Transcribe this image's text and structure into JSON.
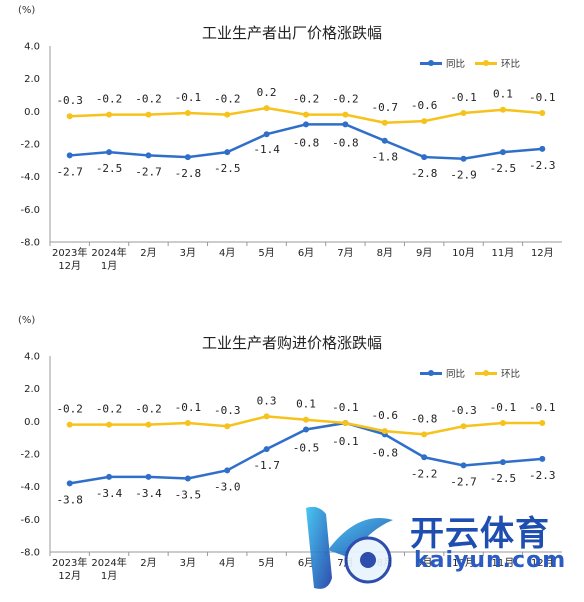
{
  "units_label": "(%)",
  "colors": {
    "yoy": "#2f6fc9",
    "mom": "#f6c21b",
    "axis": "#999999",
    "grid": "#cccccc"
  },
  "watermark": {
    "name_cn": "开云体育",
    "name_en": "kaiyun.com"
  },
  "chart_data": [
    {
      "type": "line",
      "title": "工业生产者出厂价格涨跌幅",
      "ylabel": "(%)",
      "ylim": [
        -8.0,
        4.0
      ],
      "yticks": [
        "4.0",
        "2.0",
        "0.0",
        "-2.0",
        "-4.0",
        "-6.0",
        "-8.0"
      ],
      "legend_position": "top-right",
      "categories": [
        [
          "2023年",
          "12月"
        ],
        [
          "2024年",
          "1月"
        ],
        [
          "2月"
        ],
        [
          "3月"
        ],
        [
          "4月"
        ],
        [
          "5月"
        ],
        [
          "6月"
        ],
        [
          "7月"
        ],
        [
          "8月"
        ],
        [
          "9月"
        ],
        [
          "10月"
        ],
        [
          "11月"
        ],
        [
          "12月"
        ]
      ],
      "series": [
        {
          "name": "同比",
          "color": "#2f6fc9",
          "values": [
            -2.7,
            -2.5,
            -2.7,
            -2.8,
            -2.5,
            -1.4,
            -0.8,
            -0.8,
            -1.8,
            -2.8,
            -2.9,
            -2.5,
            -2.3
          ],
          "labels": [
            "-2.7",
            "-2.5",
            "-2.7",
            "-2.8",
            "-2.5",
            "-1.4",
            "-0.8",
            "-0.8",
            "-1.8",
            "-2.8",
            "-2.9",
            "-2.5",
            "-2.3"
          ]
        },
        {
          "name": "环比",
          "color": "#f6c21b",
          "values": [
            -0.3,
            -0.2,
            -0.2,
            -0.1,
            -0.2,
            0.2,
            -0.2,
            -0.2,
            -0.7,
            -0.6,
            -0.1,
            0.1,
            -0.1
          ],
          "labels": [
            "-0.3",
            "-0.2",
            "-0.2",
            "-0.1",
            "-0.2",
            "0.2",
            "-0.2",
            "-0.2",
            "-0.7",
            "-0.6",
            "-0.1",
            "0.1",
            "-0.1"
          ]
        }
      ]
    },
    {
      "type": "line",
      "title": "工业生产者购进价格涨跌幅",
      "ylabel": "(%)",
      "ylim": [
        -8.0,
        4.0
      ],
      "yticks": [
        "4.0",
        "2.0",
        "0.0",
        "-2.0",
        "-4.0",
        "-6.0",
        "-8.0"
      ],
      "legend_position": "top-right",
      "categories": [
        [
          "2023年",
          "12月"
        ],
        [
          "2024年",
          "1月"
        ],
        [
          "2月"
        ],
        [
          "3月"
        ],
        [
          "4月"
        ],
        [
          "5月"
        ],
        [
          "6月"
        ],
        [
          "7月"
        ],
        [
          "8月"
        ],
        [
          "9月"
        ],
        [
          "10月"
        ],
        [
          "11月"
        ],
        [
          "12月"
        ]
      ],
      "series": [
        {
          "name": "同比",
          "color": "#2f6fc9",
          "values": [
            -3.8,
            -3.4,
            -3.4,
            -3.5,
            -3.0,
            -1.7,
            -0.5,
            -0.1,
            -0.8,
            -2.2,
            -2.7,
            -2.5,
            -2.3
          ],
          "labels": [
            "-3.8",
            "-3.4",
            "-3.4",
            "-3.5",
            "-3.0",
            "-1.7",
            "-0.5",
            "-0.1",
            "-0.8",
            "-2.2",
            "-2.7",
            "-2.5",
            "-2.3"
          ]
        },
        {
          "name": "环比",
          "color": "#f6c21b",
          "values": [
            -0.2,
            -0.2,
            -0.2,
            -0.1,
            -0.3,
            0.3,
            0.1,
            -0.1,
            -0.6,
            -0.8,
            -0.3,
            -0.1,
            -0.1
          ],
          "labels": [
            "-0.2",
            "-0.2",
            "-0.2",
            "-0.1",
            "-0.3",
            "0.3",
            "0.1",
            "-0.1",
            "-0.6",
            "-0.8",
            "-0.3",
            "-0.1",
            "-0.1"
          ]
        }
      ]
    }
  ]
}
